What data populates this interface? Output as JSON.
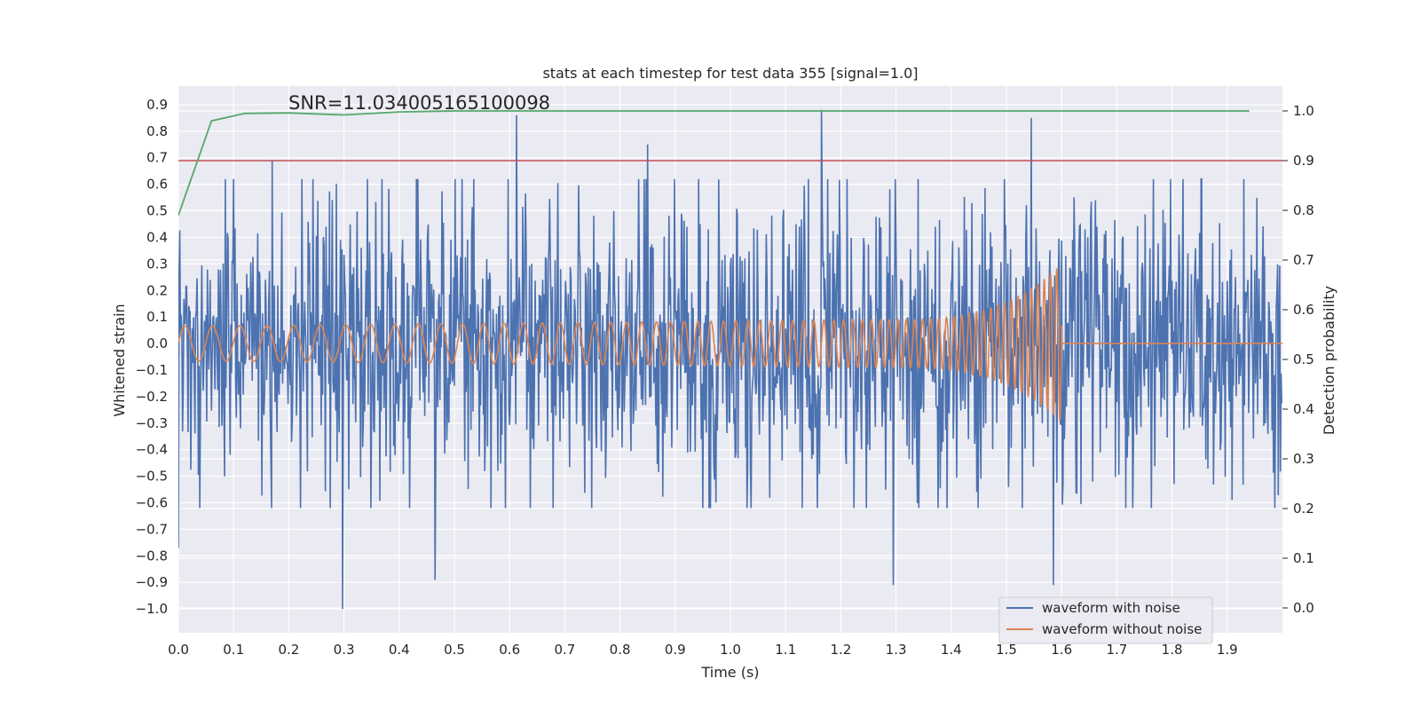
{
  "chart_data": {
    "type": "line",
    "title": "stats at each timestep for test data 355 [signal=1.0]",
    "xlabel": "Time (s)",
    "ylabel": "Whitened strain",
    "ylabel_right": "Detection probability",
    "annotation": "SNR=11.034005165100098",
    "xlim": [
      0.0,
      2.0
    ],
    "ylim": [
      -1.09,
      0.97
    ],
    "ylim_right": [
      -0.05,
      1.05
    ],
    "x_ticks": [
      "0.0",
      "0.1",
      "0.2",
      "0.3",
      "0.4",
      "0.5",
      "0.6",
      "0.7",
      "0.8",
      "0.9",
      "1.0",
      "1.1",
      "1.2",
      "1.3",
      "1.4",
      "1.5",
      "1.6",
      "1.7",
      "1.8",
      "1.9"
    ],
    "y_ticks": [
      "0.9",
      "0.8",
      "0.7",
      "0.6",
      "0.5",
      "0.4",
      "0.3",
      "0.2",
      "0.1",
      "0.0",
      "−0.1",
      "−0.2",
      "−0.3",
      "−0.4",
      "−0.5",
      "−0.6",
      "−0.7",
      "−0.8",
      "−0.9",
      "−1.0"
    ],
    "y_right_ticks": [
      "1.0",
      "0.9",
      "0.8",
      "0.7",
      "0.6",
      "0.5",
      "0.4",
      "0.3",
      "0.2",
      "0.1",
      "0.0"
    ],
    "grid": true,
    "legend_position": "lower-right",
    "series": [
      {
        "name": "waveform with noise",
        "color": "#4c72b0",
        "axis": "left",
        "envelope": "noise",
        "amplitude_typical": 0.45,
        "peaks": [
          {
            "x": 0.0,
            "y": -0.77
          },
          {
            "x": 0.17,
            "y": 0.69
          },
          {
            "x": 0.298,
            "y": -1.0
          },
          {
            "x": 0.465,
            "y": -0.89
          },
          {
            "x": 0.612,
            "y": 0.86
          },
          {
            "x": 0.85,
            "y": 0.75
          },
          {
            "x": 1.165,
            "y": 0.88
          },
          {
            "x": 1.295,
            "y": -0.91
          },
          {
            "x": 1.545,
            "y": 0.85
          },
          {
            "x": 1.585,
            "y": -0.91
          }
        ]
      },
      {
        "name": "waveform without noise",
        "color": "#dd8452",
        "axis": "left",
        "chirp": {
          "start": 0.0,
          "end": 1.6,
          "f_start": 20,
          "f_end": 90,
          "amp_start": 0.065,
          "amp_mid": 0.09,
          "amp_end": 0.3
        },
        "after_end_value": 0.0
      },
      {
        "name": "detection probability",
        "color": "#55a868",
        "axis": "right",
        "x": [
          0.0,
          0.06,
          0.12,
          0.2,
          0.3,
          0.4,
          0.5,
          1.0,
          1.5,
          1.94
        ],
        "values": [
          0.79,
          0.98,
          0.995,
          0.996,
          0.992,
          0.998,
          1.0,
          1.0,
          1.0,
          1.0
        ]
      },
      {
        "name": "threshold",
        "color": "#c44e52",
        "axis": "right",
        "x": [
          0.0,
          2.0
        ],
        "values": [
          0.9,
          0.9
        ]
      }
    ],
    "legend": [
      {
        "label": "waveform with noise",
        "color": "#4c72b0"
      },
      {
        "label": "waveform without noise",
        "color": "#dd8452"
      }
    ]
  }
}
